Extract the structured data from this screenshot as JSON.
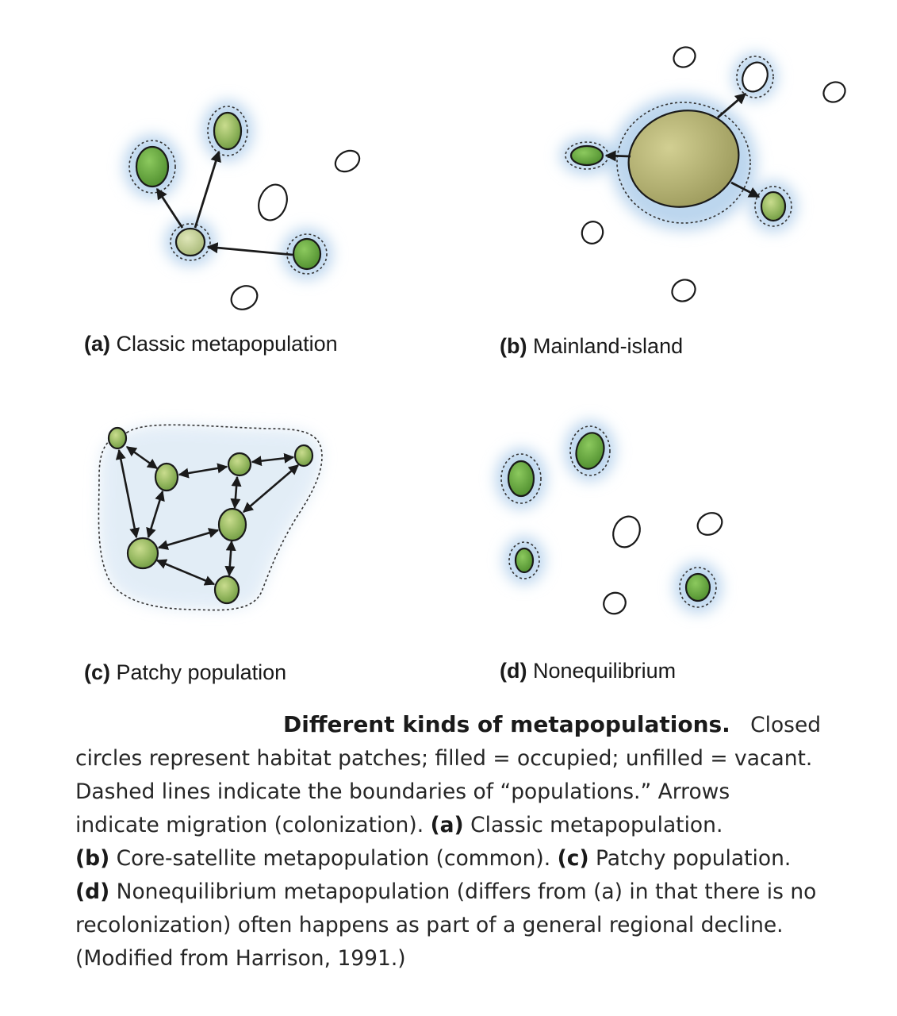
{
  "colors": {
    "occupied_fill": "#8fbc5a",
    "occupied_dark_fill": "#5f9e3a",
    "mainland_fill": "#b5b373",
    "glow": "#bcd6ee",
    "outline": "#1a1a1a",
    "vacant_fill": "#ffffff"
  },
  "panels": [
    {
      "id": "a",
      "letter": "(a)",
      "title": "Classic metapopulation"
    },
    {
      "id": "b",
      "letter": "(b)",
      "title": "Mainland-island"
    },
    {
      "id": "c",
      "letter": "(c)",
      "title": "Patchy population"
    },
    {
      "id": "d",
      "letter": "(d)",
      "title": "Nonequilibrium"
    }
  ],
  "caption": {
    "title": "Different kinds of metapopulations.",
    "line1_rest": "Closed",
    "line2": "circles represent habitat patches; filled = occupied; unfilled = vacant.",
    "line3": "Dashed lines indicate the boundaries of “populations.” Arrows",
    "line4_pre": "indicate migration (colonization).",
    "a_label": "(a)",
    "a_text": "Classic metapopulation.",
    "b_label": "(b)",
    "b_text": "Core-satellite metapopulation (common).",
    "c_label": "(c)",
    "c_text": "Patchy population.",
    "d_label": "(d)",
    "d_text": "Nonequilibrium metapopulation (differs from (a) in that there is no",
    "line7": "recolonization) often happens as part of a general regional decline.",
    "line8": "(Modified from Harrison, 1991.)"
  }
}
